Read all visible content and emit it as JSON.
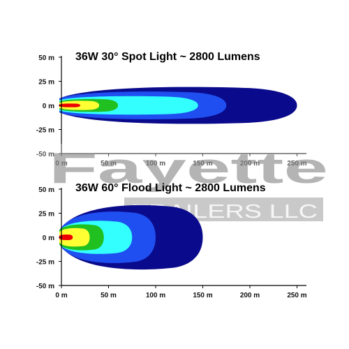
{
  "watermark": {
    "brand": "Fayette",
    "subtitle": "TRAILERS LLC",
    "color": "#8a8a8a"
  },
  "chart_data": [
    {
      "type": "area",
      "title": "36W 30° Spot Light ~ 2800 Lumens",
      "xlabel": "",
      "ylabel": "",
      "xlim": [
        0,
        260
      ],
      "ylim": [
        -50,
        50
      ],
      "x_ticks": [
        0,
        50,
        100,
        150,
        200,
        250
      ],
      "x_tick_labels": [
        "0 m",
        "50 m",
        "100 m",
        "150 m",
        "200 m",
        "250 m"
      ],
      "y_ticks": [
        50,
        25,
        0,
        -25,
        -50
      ],
      "y_tick_labels": [
        "50 m",
        "25 m",
        "0 m",
        "-25 m",
        "-50 m"
      ],
      "grid": false,
      "series": [
        {
          "color": "#0a0a8c",
          "reach": 250,
          "half_width": 20
        },
        {
          "color": "#1f4ff0",
          "reach": 175,
          "half_width": 15
        },
        {
          "color": "#33ffff",
          "reach": 145,
          "half_width": 10
        },
        {
          "color": "#20c020",
          "reach": 60,
          "half_width": 7
        },
        {
          "color": "#ffff33",
          "reach": 40,
          "half_width": 5
        },
        {
          "color": "#ee0000",
          "reach": 20,
          "half_width": 2
        }
      ]
    },
    {
      "type": "area",
      "title": "36W 60° Flood Light ~ 2800 Lumens",
      "xlabel": "",
      "ylabel": "",
      "xlim": [
        0,
        260
      ],
      "ylim": [
        -50,
        50
      ],
      "x_ticks": [
        0,
        50,
        100,
        150,
        200,
        250
      ],
      "x_tick_labels": [
        "0 m",
        "50 m",
        "100 m",
        "150 m",
        "200 m",
        "250 m"
      ],
      "y_ticks": [
        50,
        25,
        0,
        -25,
        -50
      ],
      "y_tick_labels": [
        "50 m",
        "25 m",
        "0 m",
        "-25 m",
        "-50 m"
      ],
      "grid": false,
      "series": [
        {
          "color": "#0a0a8c",
          "reach": 150,
          "half_width": 35
        },
        {
          "color": "#1f4ff0",
          "reach": 100,
          "half_width": 28
        },
        {
          "color": "#33ffff",
          "reach": 75,
          "half_width": 18
        },
        {
          "color": "#20c020",
          "reach": 45,
          "half_width": 14
        },
        {
          "color": "#ffff33",
          "reach": 30,
          "half_width": 10
        },
        {
          "color": "#ee0000",
          "reach": 12,
          "half_width": 3
        }
      ]
    }
  ]
}
